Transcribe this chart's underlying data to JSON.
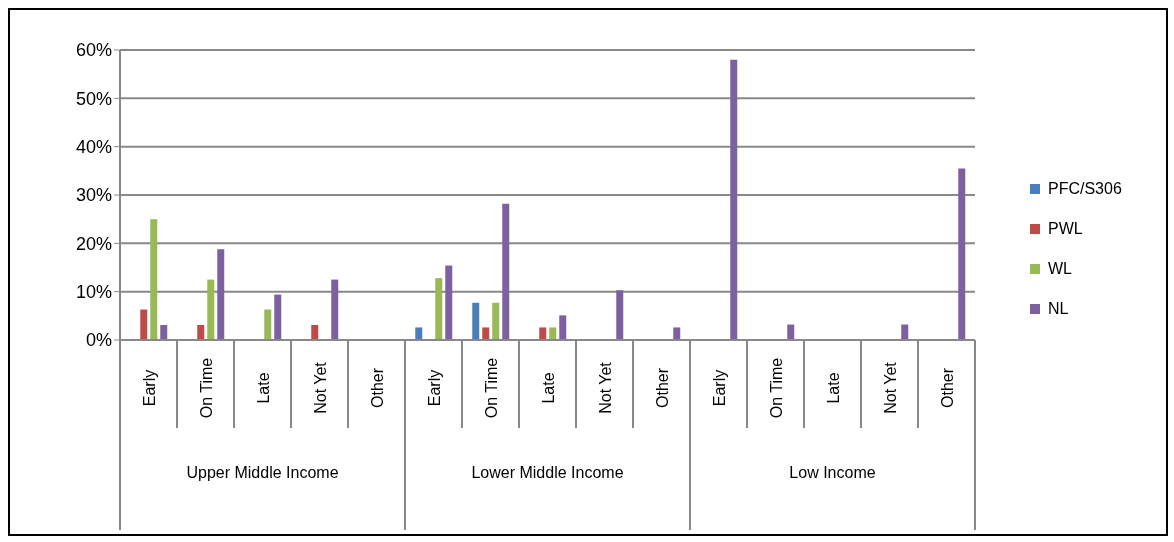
{
  "chart_data": {
    "type": "bar",
    "categories": [
      "Early",
      "On Time",
      "Late",
      "Not Yet",
      "Other",
      "Early",
      "On Time",
      "Late",
      "Not Yet",
      "Other",
      "Early",
      "On Time",
      "Late",
      "Not Yet",
      "Other"
    ],
    "annotations": [
      "Upper Middle Income",
      "Lower Middle Income",
      "Low Income"
    ],
    "series": [
      {
        "name": "PFC/S306",
        "color": "#4a7ebb",
        "values": [
          0,
          0,
          0,
          0,
          0,
          2.6,
          7.7,
          0,
          0,
          0,
          0,
          0,
          0,
          0,
          0
        ]
      },
      {
        "name": "PWL",
        "color": "#be4b48",
        "values": [
          6.3,
          3.1,
          0,
          3.1,
          0,
          0,
          2.6,
          2.6,
          0,
          0,
          0,
          0,
          0,
          0,
          0
        ]
      },
      {
        "name": "WL",
        "color": "#98b954",
        "values": [
          25,
          12.5,
          6.3,
          0,
          0,
          12.8,
          7.7,
          2.6,
          0,
          0,
          0,
          0,
          0,
          0,
          0
        ]
      },
      {
        "name": "NL",
        "color": "#7d60a0",
        "values": [
          3.1,
          18.8,
          9.4,
          12.5,
          0,
          15.4,
          28.2,
          5.1,
          10.3,
          2.6,
          58,
          3.2,
          0,
          3.2,
          35.5
        ]
      }
    ],
    "ylim": [
      0,
      60
    ],
    "yticks": [
      {
        "value": 0,
        "label": "0%"
      },
      {
        "value": 10,
        "label": "10%"
      },
      {
        "value": 20,
        "label": "20%"
      },
      {
        "value": 30,
        "label": "30%"
      },
      {
        "value": 40,
        "label": "40%"
      },
      {
        "value": 50,
        "label": "50%"
      },
      {
        "value": 60,
        "label": "60%"
      }
    ],
    "grid": "y",
    "legend": "right"
  }
}
